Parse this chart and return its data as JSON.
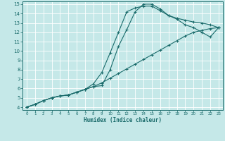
{
  "xlabel": "Humidex (Indice chaleur)",
  "background_color": "#c5e8e8",
  "grid_color": "#b0d8d8",
  "line_color": "#1a6b6b",
  "xlim": [
    -0.5,
    23.5
  ],
  "ylim": [
    3.7,
    15.3
  ],
  "xtick_vals": [
    0,
    1,
    2,
    3,
    4,
    5,
    6,
    7,
    8,
    9,
    10,
    11,
    12,
    13,
    14,
    15,
    16,
    17,
    18,
    19,
    20,
    21,
    22,
    23
  ],
  "ytick_vals": [
    4,
    5,
    6,
    7,
    8,
    9,
    10,
    11,
    12,
    13,
    14,
    15
  ],
  "line1_x": [
    0,
    1,
    2,
    3,
    4,
    5,
    6,
    7,
    8,
    9,
    10,
    11,
    12,
    13,
    14,
    15,
    16,
    17,
    18,
    19,
    20,
    21,
    22,
    23
  ],
  "line1_y": [
    4.0,
    4.3,
    4.7,
    5.0,
    5.2,
    5.3,
    5.6,
    5.9,
    6.2,
    6.6,
    7.1,
    7.6,
    8.1,
    8.6,
    9.1,
    9.6,
    10.1,
    10.6,
    11.1,
    11.6,
    12.0,
    12.2,
    12.4,
    12.5
  ],
  "line2_x": [
    0,
    1,
    2,
    3,
    4,
    5,
    6,
    7,
    8,
    9,
    10,
    11,
    12,
    13,
    14,
    15,
    16,
    17,
    18,
    19,
    20,
    21,
    22,
    23
  ],
  "line2_y": [
    4.0,
    4.3,
    4.7,
    5.0,
    5.2,
    5.3,
    5.6,
    5.9,
    6.5,
    7.7,
    9.8,
    12.0,
    14.2,
    14.6,
    14.8,
    14.8,
    14.3,
    13.8,
    13.5,
    13.3,
    13.1,
    13.0,
    12.8,
    12.5
  ],
  "line3_x": [
    0,
    1,
    2,
    3,
    4,
    5,
    6,
    7,
    8,
    9,
    10,
    11,
    12,
    13,
    14,
    15,
    16,
    17,
    18,
    19,
    20,
    21,
    22,
    23
  ],
  "line3_y": [
    4.0,
    4.3,
    4.7,
    5.0,
    5.2,
    5.3,
    5.6,
    5.9,
    6.2,
    6.3,
    8.0,
    10.5,
    12.3,
    14.2,
    15.0,
    15.0,
    14.5,
    13.8,
    13.4,
    12.8,
    12.5,
    12.0,
    11.5,
    12.5
  ]
}
